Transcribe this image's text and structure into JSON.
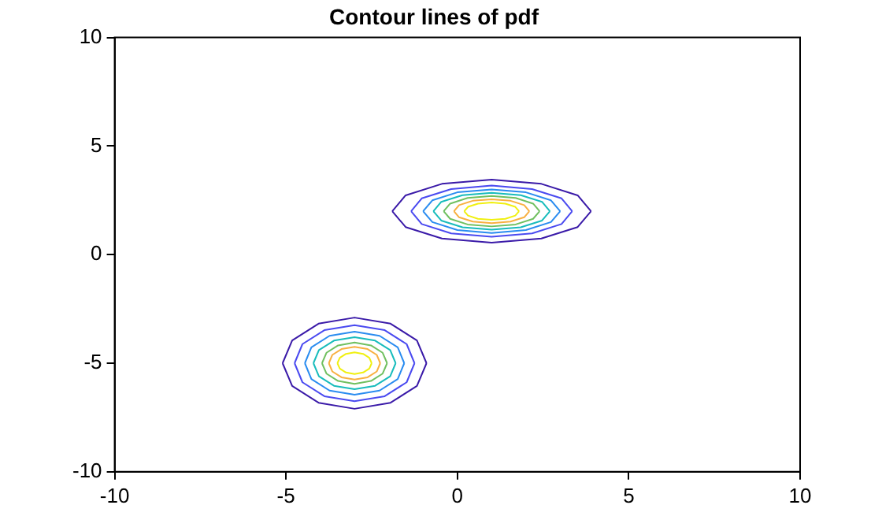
{
  "chart_data": {
    "type": "line",
    "title": "Contour lines of pdf",
    "xlim": [
      -10,
      10
    ],
    "ylim": [
      -10,
      10
    ],
    "xticks": [
      -10,
      -5,
      0,
      5,
      10
    ],
    "yticks": [
      -10,
      -5,
      0,
      5,
      10
    ],
    "grid": false,
    "legend": false,
    "marker": "none",
    "line_style": "solid",
    "series": [
      {
        "color": "#3a1aa8",
        "x": [
          -1.9,
          -1.51,
          -0.45,
          1,
          2.45,
          3.51,
          3.9
        ],
        "values": [
          2,
          2.73,
          3.26,
          3.45,
          3.26,
          2.73,
          2
        ]
      },
      {
        "color": "#3a1aa8",
        "x": [
          -1.9,
          -1.51,
          -0.45,
          1,
          2.45,
          3.51,
          3.9
        ],
        "values": [
          2,
          1.27,
          0.74,
          0.55,
          0.74,
          1.27,
          2
        ]
      },
      {
        "color": "#4a4af0",
        "x": [
          -1.35,
          -1.04,
          -0.18,
          1,
          2.18,
          3.04,
          3.35
        ],
        "values": [
          2,
          2.59,
          3.02,
          3.18,
          3.02,
          2.59,
          2
        ]
      },
      {
        "color": "#4a4af0",
        "x": [
          -1.35,
          -1.04,
          -0.18,
          1,
          2.18,
          3.04,
          3.35
        ],
        "values": [
          2,
          1.41,
          0.98,
          0.82,
          0.98,
          1.41,
          2
        ]
      },
      {
        "color": "#2a8cf0",
        "x": [
          -1,
          -0.73,
          0,
          1,
          2,
          2.73,
          3
        ],
        "values": [
          2,
          2.5,
          2.87,
          3,
          2.87,
          2.5,
          2
        ]
      },
      {
        "color": "#2a8cf0",
        "x": [
          -1,
          -0.73,
          0,
          1,
          2,
          2.73,
          3
        ],
        "values": [
          2,
          1.5,
          1.13,
          1,
          1.13,
          1.5,
          2
        ]
      },
      {
        "color": "#18bcbc",
        "x": [
          -0.7,
          -0.47,
          0.15,
          1,
          1.85,
          2.47,
          2.7
        ],
        "values": [
          2,
          2.43,
          2.74,
          2.85,
          2.74,
          2.43,
          2
        ]
      },
      {
        "color": "#18bcbc",
        "x": [
          -0.7,
          -0.47,
          0.15,
          1,
          1.85,
          2.47,
          2.7
        ],
        "values": [
          2,
          1.57,
          1.26,
          1.15,
          1.26,
          1.57,
          2
        ]
      },
      {
        "color": "#70c060",
        "x": [
          -0.4,
          -0.21,
          0.3,
          1,
          1.7,
          2.21,
          2.4
        ],
        "values": [
          2,
          2.35,
          2.61,
          2.7,
          2.61,
          2.35,
          2
        ]
      },
      {
        "color": "#70c060",
        "x": [
          -0.4,
          -0.21,
          0.3,
          1,
          1.7,
          2.21,
          2.4
        ],
        "values": [
          2,
          1.65,
          1.39,
          1.3,
          1.39,
          1.65,
          2
        ]
      },
      {
        "color": "#f8b040",
        "x": [
          -0.1,
          0.05,
          0.45,
          1,
          1.55,
          1.95,
          2.1
        ],
        "values": [
          2,
          2.28,
          2.48,
          2.55,
          2.48,
          2.28,
          2
        ]
      },
      {
        "color": "#f8b040",
        "x": [
          -0.1,
          0.05,
          0.45,
          1,
          1.55,
          1.95,
          2.1
        ],
        "values": [
          2,
          1.72,
          1.52,
          1.45,
          1.52,
          1.72,
          2
        ]
      },
      {
        "color": "#f0f010",
        "x": [
          0.2,
          0.31,
          0.6,
          1,
          1.4,
          1.69,
          1.8
        ],
        "values": [
          2,
          2.2,
          2.35,
          2.4,
          2.35,
          2.2,
          2
        ]
      },
      {
        "color": "#f0f010",
        "x": [
          0.2,
          0.31,
          0.6,
          1,
          1.4,
          1.69,
          1.8
        ],
        "values": [
          2,
          1.8,
          1.65,
          1.6,
          1.65,
          1.8,
          2
        ]
      },
      {
        "color": "#3a1aa8",
        "x": [
          -5.1,
          -4.82,
          -4.05,
          -3,
          -1.95,
          -1.18,
          -0.9
        ],
        "values": [
          -5,
          -3.95,
          -3.18,
          -2.9,
          -3.18,
          -3.95,
          -5
        ]
      },
      {
        "color": "#3a1aa8",
        "x": [
          -5.1,
          -4.82,
          -4.05,
          -3,
          -1.95,
          -1.18,
          -0.9
        ],
        "values": [
          -5,
          -6.05,
          -6.82,
          -7.1,
          -6.82,
          -6.05,
          -5
        ]
      },
      {
        "color": "#4a4af0",
        "x": [
          -4.75,
          -4.52,
          -3.88,
          -3,
          -2.12,
          -1.48,
          -1.25
        ],
        "values": [
          -5,
          -4.12,
          -3.48,
          -3.25,
          -3.48,
          -4.12,
          -5
        ]
      },
      {
        "color": "#4a4af0",
        "x": [
          -4.75,
          -4.52,
          -3.88,
          -3,
          -2.12,
          -1.48,
          -1.25
        ],
        "values": [
          -5,
          -5.88,
          -6.52,
          -6.75,
          -6.52,
          -5.88,
          -5
        ]
      },
      {
        "color": "#2a8cf0",
        "x": [
          -4.45,
          -4.26,
          -3.73,
          -3,
          -2.27,
          -1.74,
          -1.55
        ],
        "values": [
          -5,
          -4.27,
          -3.74,
          -3.55,
          -3.74,
          -4.27,
          -5
        ]
      },
      {
        "color": "#2a8cf0",
        "x": [
          -4.45,
          -4.26,
          -3.73,
          -3,
          -2.27,
          -1.74,
          -1.55
        ],
        "values": [
          -5,
          -5.73,
          -6.26,
          -6.45,
          -6.26,
          -5.73,
          -5
        ]
      },
      {
        "color": "#18bcbc",
        "x": [
          -4.2,
          -4.04,
          -3.6,
          -3,
          -2.4,
          -1.96,
          -1.8
        ],
        "values": [
          -5,
          -4.4,
          -3.96,
          -3.8,
          -3.96,
          -4.4,
          -5
        ]
      },
      {
        "color": "#18bcbc",
        "x": [
          -4.2,
          -4.04,
          -3.6,
          -3,
          -2.4,
          -1.96,
          -1.8
        ],
        "values": [
          -5,
          -5.6,
          -6.04,
          -6.2,
          -6.04,
          -5.6,
          -5
        ]
      },
      {
        "color": "#70c060",
        "x": [
          -3.95,
          -3.82,
          -3.48,
          -3,
          -2.52,
          -2.18,
          -2.05
        ],
        "values": [
          -5,
          -4.52,
          -4.18,
          -4.05,
          -4.18,
          -4.52,
          -5
        ]
      },
      {
        "color": "#70c060",
        "x": [
          -3.95,
          -3.82,
          -3.48,
          -3,
          -2.52,
          -2.18,
          -2.05
        ],
        "values": [
          -5,
          -5.48,
          -5.82,
          -5.95,
          -5.82,
          -5.48,
          -5
        ]
      },
      {
        "color": "#f8b040",
        "x": [
          -3.75,
          -3.65,
          -3.38,
          -3,
          -2.62,
          -2.35,
          -2.25
        ],
        "values": [
          -5,
          -4.62,
          -4.35,
          -4.25,
          -4.35,
          -4.62,
          -5
        ]
      },
      {
        "color": "#f8b040",
        "x": [
          -3.75,
          -3.65,
          -3.38,
          -3,
          -2.62,
          -2.35,
          -2.25
        ],
        "values": [
          -5,
          -5.38,
          -5.65,
          -5.75,
          -5.65,
          -5.38,
          -5
        ]
      },
      {
        "color": "#f0f010",
        "x": [
          -3.5,
          -3.43,
          -3.25,
          -3,
          -2.75,
          -2.57,
          -2.5
        ],
        "values": [
          -5,
          -4.75,
          -4.57,
          -4.5,
          -4.57,
          -4.75,
          -5
        ]
      },
      {
        "color": "#f0f010",
        "x": [
          -3.5,
          -3.43,
          -3.25,
          -3,
          -2.75,
          -2.57,
          -2.5
        ],
        "values": [
          -5,
          -5.25,
          -5.43,
          -5.5,
          -5.43,
          -5.25,
          -5
        ]
      }
    ]
  }
}
